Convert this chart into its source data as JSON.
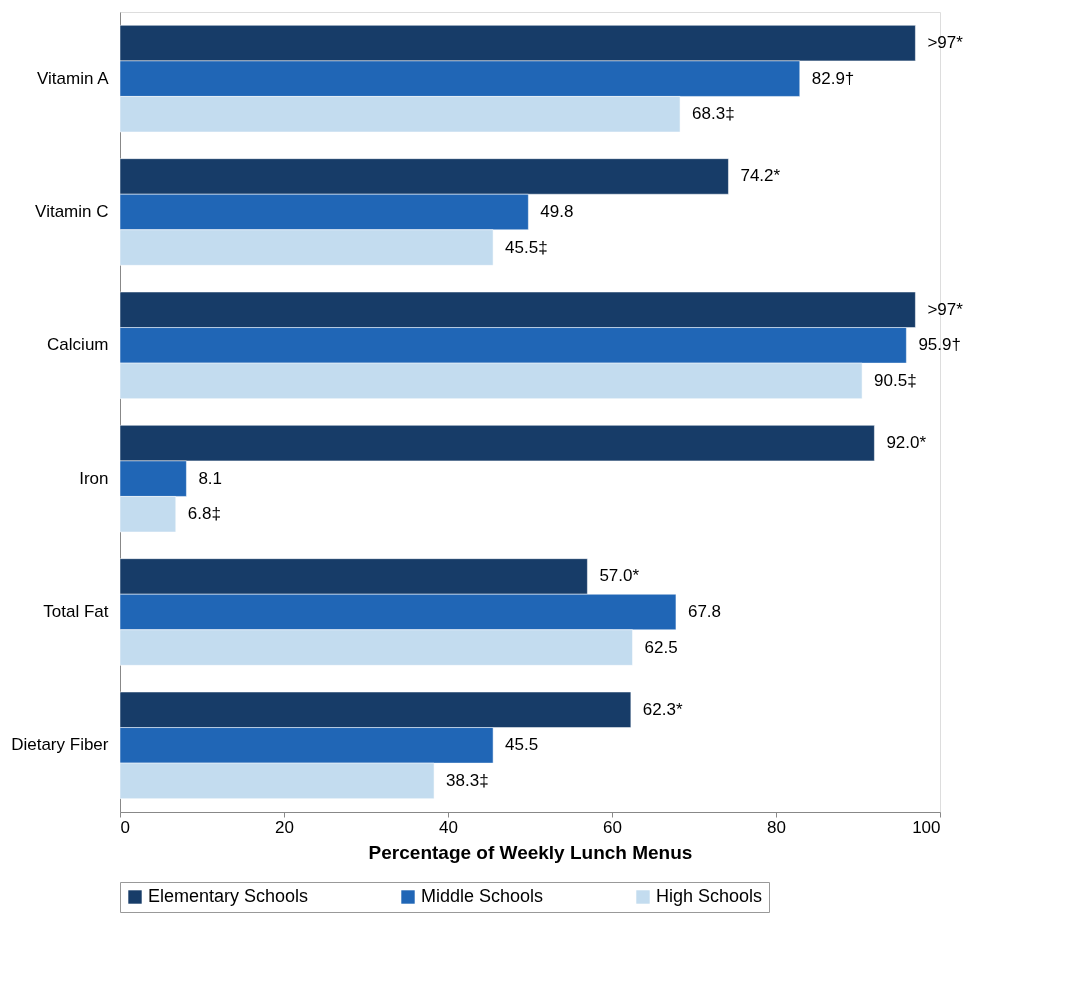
{
  "chart_data": {
    "type": "bar",
    "orientation": "horizontal",
    "xlabel": "Percentage of Weekly Lunch Menus",
    "categories": [
      "Vitamin A",
      "Vitamin C",
      "Calcium",
      "Iron",
      "Total Fat",
      "Dietary Fiber"
    ],
    "series": [
      {
        "name": "Elementary Schools",
        "color": "#173c68",
        "values": [
          97,
          74.2,
          97,
          92.0,
          57.0,
          62.3
        ],
        "value_labels": [
          ">97*",
          "74.2*",
          ">97*",
          "92.0*",
          "57.0*",
          "62.3*"
        ]
      },
      {
        "name": "Middle Schools",
        "color": "#2066b6",
        "values": [
          82.9,
          49.8,
          95.9,
          8.1,
          67.8,
          45.5
        ],
        "value_labels": [
          "82.9†",
          "49.8",
          "95.9†",
          "8.1",
          "67.8",
          "45.5"
        ]
      },
      {
        "name": "High Schools",
        "color": "#c3dcef",
        "values": [
          68.3,
          45.5,
          90.5,
          6.8,
          62.5,
          38.3
        ],
        "value_labels": [
          "68.3‡",
          "45.5‡",
          "90.5‡",
          "6.8‡",
          "62.5",
          "38.3‡"
        ]
      }
    ],
    "xlim": [
      0,
      100
    ],
    "xticks": [
      0,
      20,
      40,
      60,
      80,
      100
    ],
    "grid": false,
    "legend": "bottom"
  }
}
